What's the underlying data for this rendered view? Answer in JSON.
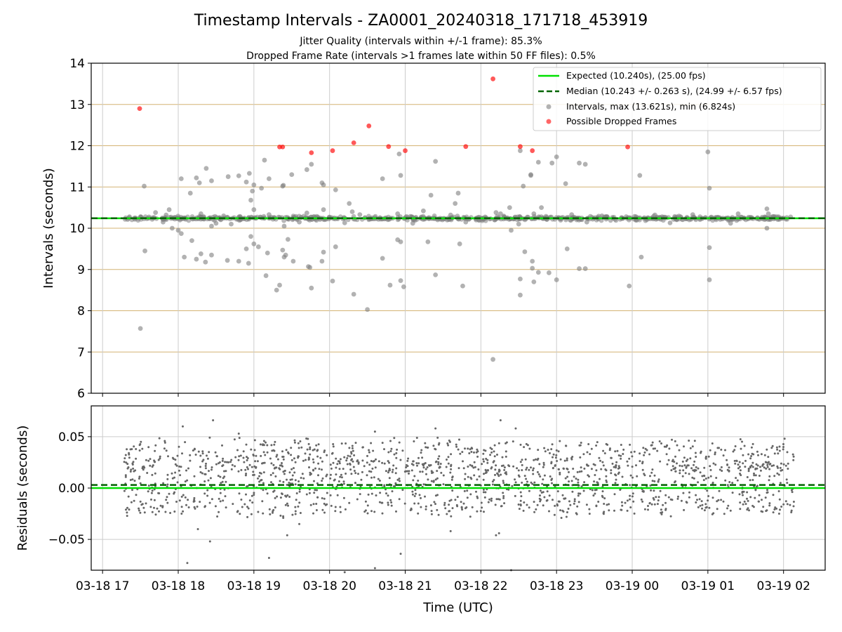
{
  "chart_data": [
    {
      "panel": "intervals",
      "type": "scatter",
      "title": "Timestamp Intervals - ZA0001_20240318_171718_453919",
      "subtitle_lines": [
        "Jitter Quality (intervals within +/-1 frame): 85.3%",
        "Dropped Frame Rate (intervals >1 frames late within 50 FF files): 0.5%"
      ],
      "ylabel": "Intervals (seconds)",
      "ylim": [
        6,
        14
      ],
      "yticks": [
        "6",
        "7",
        "8",
        "9",
        "10",
        "11",
        "12",
        "13",
        "14"
      ],
      "grid": "x and y",
      "legend_position": "top-right",
      "expected": 10.24,
      "median": 10.243,
      "legend": [
        "Expected (10.240s), (25.00 fps)",
        "Median (10.243 +/- 0.263 s), (24.99 +/- 6.57 fps)",
        "Intervals, max (13.621s), min (6.824s)",
        "Possible Dropped Frames"
      ],
      "colors": {
        "expected": "#00e000",
        "median": "#006400",
        "intervals": "#7f7f7f",
        "dropped": "#ff0000",
        "grid_y": "#d4b373",
        "grid_x": "#cccccc"
      },
      "series": [
        {
          "name": "Intervals, max (13.621s), min (6.824s)",
          "points": [
            [
              17.5,
              7.57
            ],
            [
              17.55,
              11.02
            ],
            [
              17.56,
              9.45
            ],
            [
              17.88,
              10.45
            ],
            [
              17.92,
              10.0
            ],
            [
              18.0,
              9.95
            ],
            [
              18.04,
              9.87
            ],
            [
              18.04,
              11.2
            ],
            [
              18.08,
              9.3
            ],
            [
              18.16,
              10.85
            ],
            [
              18.18,
              9.7
            ],
            [
              18.24,
              9.25
            ],
            [
              18.24,
              11.22
            ],
            [
              18.28,
              11.1
            ],
            [
              18.3,
              9.38
            ],
            [
              18.36,
              9.18
            ],
            [
              18.37,
              11.45
            ],
            [
              18.44,
              9.35
            ],
            [
              18.44,
              11.15
            ],
            [
              18.44,
              10.05
            ],
            [
              18.65,
              9.22
            ],
            [
              18.66,
              11.25
            ],
            [
              18.7,
              10.1
            ],
            [
              18.8,
              9.2
            ],
            [
              18.8,
              11.27
            ],
            [
              18.9,
              9.5
            ],
            [
              18.9,
              11.12
            ],
            [
              18.93,
              9.15
            ],
            [
              18.94,
              11.33
            ],
            [
              18.96,
              9.8
            ],
            [
              18.96,
              10.68
            ],
            [
              18.98,
              10.9
            ],
            [
              19.0,
              11.05
            ],
            [
              19.0,
              10.45
            ],
            [
              19.0,
              9.62
            ],
            [
              19.06,
              9.55
            ],
            [
              19.1,
              10.97
            ],
            [
              19.14,
              11.65
            ],
            [
              19.16,
              8.85
            ],
            [
              19.18,
              9.4
            ],
            [
              19.2,
              11.2
            ],
            [
              19.3,
              8.5
            ],
            [
              19.34,
              8.62
            ],
            [
              19.38,
              11.02
            ],
            [
              19.38,
              9.47
            ],
            [
              19.39,
              11.04
            ],
            [
              19.4,
              9.3
            ],
            [
              19.4,
              10.05
            ],
            [
              19.42,
              9.35
            ],
            [
              19.45,
              9.73
            ],
            [
              19.5,
              11.3
            ],
            [
              19.52,
              9.2
            ],
            [
              19.7,
              11.42
            ],
            [
              19.72,
              9.07
            ],
            [
              19.74,
              9.05
            ],
            [
              19.76,
              8.55
            ],
            [
              19.76,
              11.55
            ],
            [
              19.9,
              9.2
            ],
            [
              19.9,
              11.1
            ],
            [
              19.92,
              11.05
            ],
            [
              19.92,
              9.42
            ],
            [
              19.92,
              10.45
            ],
            [
              20.04,
              8.72
            ],
            [
              20.08,
              9.55
            ],
            [
              20.08,
              10.93
            ],
            [
              20.26,
              10.6
            ],
            [
              20.3,
              10.4
            ],
            [
              20.32,
              8.4
            ],
            [
              20.5,
              8.03
            ],
            [
              20.7,
              9.27
            ],
            [
              20.7,
              11.2
            ],
            [
              20.8,
              8.62
            ],
            [
              20.9,
              9.72
            ],
            [
              20.92,
              11.8
            ],
            [
              20.94,
              8.73
            ],
            [
              20.94,
              11.28
            ],
            [
              20.94,
              9.67
            ],
            [
              20.98,
              8.58
            ],
            [
              21.3,
              9.67
            ],
            [
              21.34,
              10.8
            ],
            [
              21.4,
              8.87
            ],
            [
              21.4,
              11.62
            ],
            [
              21.66,
              10.6
            ],
            [
              21.7,
              10.85
            ],
            [
              21.72,
              9.62
            ],
            [
              21.76,
              8.6
            ],
            [
              22.16,
              6.82
            ],
            [
              22.26,
              10.35
            ],
            [
              22.38,
              10.5
            ],
            [
              22.4,
              9.95
            ],
            [
              22.52,
              11.88
            ],
            [
              22.52,
              8.38
            ],
            [
              22.52,
              8.77
            ],
            [
              22.56,
              11.02
            ],
            [
              22.58,
              9.43
            ],
            [
              22.66,
              11.28
            ],
            [
              22.66,
              11.3
            ],
            [
              22.68,
              9.2
            ],
            [
              22.68,
              9.03
            ],
            [
              22.7,
              8.7
            ],
            [
              22.76,
              11.6
            ],
            [
              22.76,
              8.93
            ],
            [
              22.8,
              10.5
            ],
            [
              22.9,
              8.92
            ],
            [
              22.94,
              11.58
            ],
            [
              23.0,
              8.75
            ],
            [
              23.0,
              11.73
            ],
            [
              23.12,
              11.08
            ],
            [
              23.14,
              9.5
            ],
            [
              23.3,
              11.58
            ],
            [
              23.3,
              9.02
            ],
            [
              23.38,
              9.02
            ],
            [
              23.38,
              11.55
            ],
            [
              23.96,
              8.6
            ],
            [
              24.1,
              11.28
            ],
            [
              24.12,
              9.3
            ],
            [
              25.0,
              11.85
            ],
            [
              25.02,
              10.97
            ],
            [
              25.02,
              9.53
            ],
            [
              25.02,
              8.75
            ],
            [
              25.78,
              10.47
            ],
            [
              25.78,
              10.0
            ],
            [
              25.8,
              10.35
            ],
            [
              17.7,
              10.38
            ],
            [
              17.84,
              10.32
            ],
            [
              18.3,
              10.35
            ],
            [
              18.6,
              10.3
            ],
            [
              19.2,
              10.33
            ],
            [
              19.7,
              10.37
            ],
            [
              20.4,
              10.33
            ],
            [
              20.9,
              10.35
            ],
            [
              21.24,
              10.42
            ],
            [
              21.6,
              10.32
            ],
            [
              22.2,
              10.38
            ],
            [
              22.7,
              10.35
            ],
            [
              23.2,
              10.33
            ],
            [
              23.6,
              10.3
            ],
            [
              24.3,
              10.32
            ],
            [
              24.8,
              10.33
            ],
            [
              25.4,
              10.35
            ],
            [
              17.8,
              10.15
            ],
            [
              18.5,
              10.12
            ],
            [
              19.6,
              10.15
            ],
            [
              20.2,
              10.13
            ],
            [
              21.1,
              10.12
            ],
            [
              21.8,
              10.15
            ],
            [
              22.5,
              10.1
            ],
            [
              23.4,
              10.15
            ],
            [
              24.5,
              10.13
            ],
            [
              25.3,
              10.12
            ]
          ]
        },
        {
          "name": "Possible Dropped Frames",
          "points": [
            [
              17.49,
              12.9
            ],
            [
              19.34,
              11.97
            ],
            [
              19.38,
              11.97
            ],
            [
              19.76,
              11.83
            ],
            [
              20.04,
              11.88
            ],
            [
              20.32,
              12.07
            ],
            [
              20.52,
              12.48
            ],
            [
              20.78,
              11.98
            ],
            [
              21.0,
              11.88
            ],
            [
              21.8,
              11.98
            ],
            [
              22.16,
              13.62
            ],
            [
              22.52,
              11.98
            ],
            [
              22.68,
              11.88
            ],
            [
              23.94,
              11.97
            ]
          ]
        }
      ],
      "dense_band": {
        "x_range": [
          17.28,
          26.14
        ],
        "y_center": 10.24,
        "spread": 0.07
      }
    },
    {
      "panel": "residuals",
      "type": "scatter",
      "xlabel": "Time (UTC)",
      "ylabel": "Residuals (seconds)",
      "ylim": [
        -0.08,
        0.08
      ],
      "yticks": [
        "−0.05",
        "0.00",
        "0.05"
      ],
      "xlim": [
        16.85,
        26.55
      ],
      "xticks": [
        {
          "x": 17,
          "label": "03-18 17"
        },
        {
          "x": 18,
          "label": "03-18 18"
        },
        {
          "x": 19,
          "label": "03-18 19"
        },
        {
          "x": 20,
          "label": "03-18 20"
        },
        {
          "x": 21,
          "label": "03-18 21"
        },
        {
          "x": 22,
          "label": "03-18 22"
        },
        {
          "x": 23,
          "label": "03-18 23"
        },
        {
          "x": 24,
          "label": "03-19 00"
        },
        {
          "x": 25,
          "label": "03-19 01"
        },
        {
          "x": 26,
          "label": "03-19 02"
        }
      ],
      "expected_residual": 0.0,
      "median_residual": 0.003,
      "outliers": [
        [
          18.06,
          0.06
        ],
        [
          18.12,
          -0.073
        ],
        [
          18.46,
          0.066
        ],
        [
          18.42,
          -0.052
        ],
        [
          18.26,
          -0.04
        ],
        [
          19.2,
          -0.068
        ],
        [
          19.44,
          -0.046
        ],
        [
          19.6,
          -0.035
        ],
        [
          20.2,
          -0.082
        ],
        [
          20.6,
          -0.078
        ],
        [
          20.94,
          -0.064
        ],
        [
          21.6,
          -0.042
        ],
        [
          22.2,
          -0.046
        ],
        [
          22.24,
          -0.044
        ],
        [
          22.26,
          0.066
        ],
        [
          22.4,
          -0.08
        ],
        [
          22.46,
          0.058
        ],
        [
          18.8,
          0.053
        ],
        [
          20.6,
          0.055
        ],
        [
          21.4,
          0.058
        ]
      ],
      "x_range": [
        17.28,
        26.14
      ],
      "n_points": 1700
    }
  ]
}
